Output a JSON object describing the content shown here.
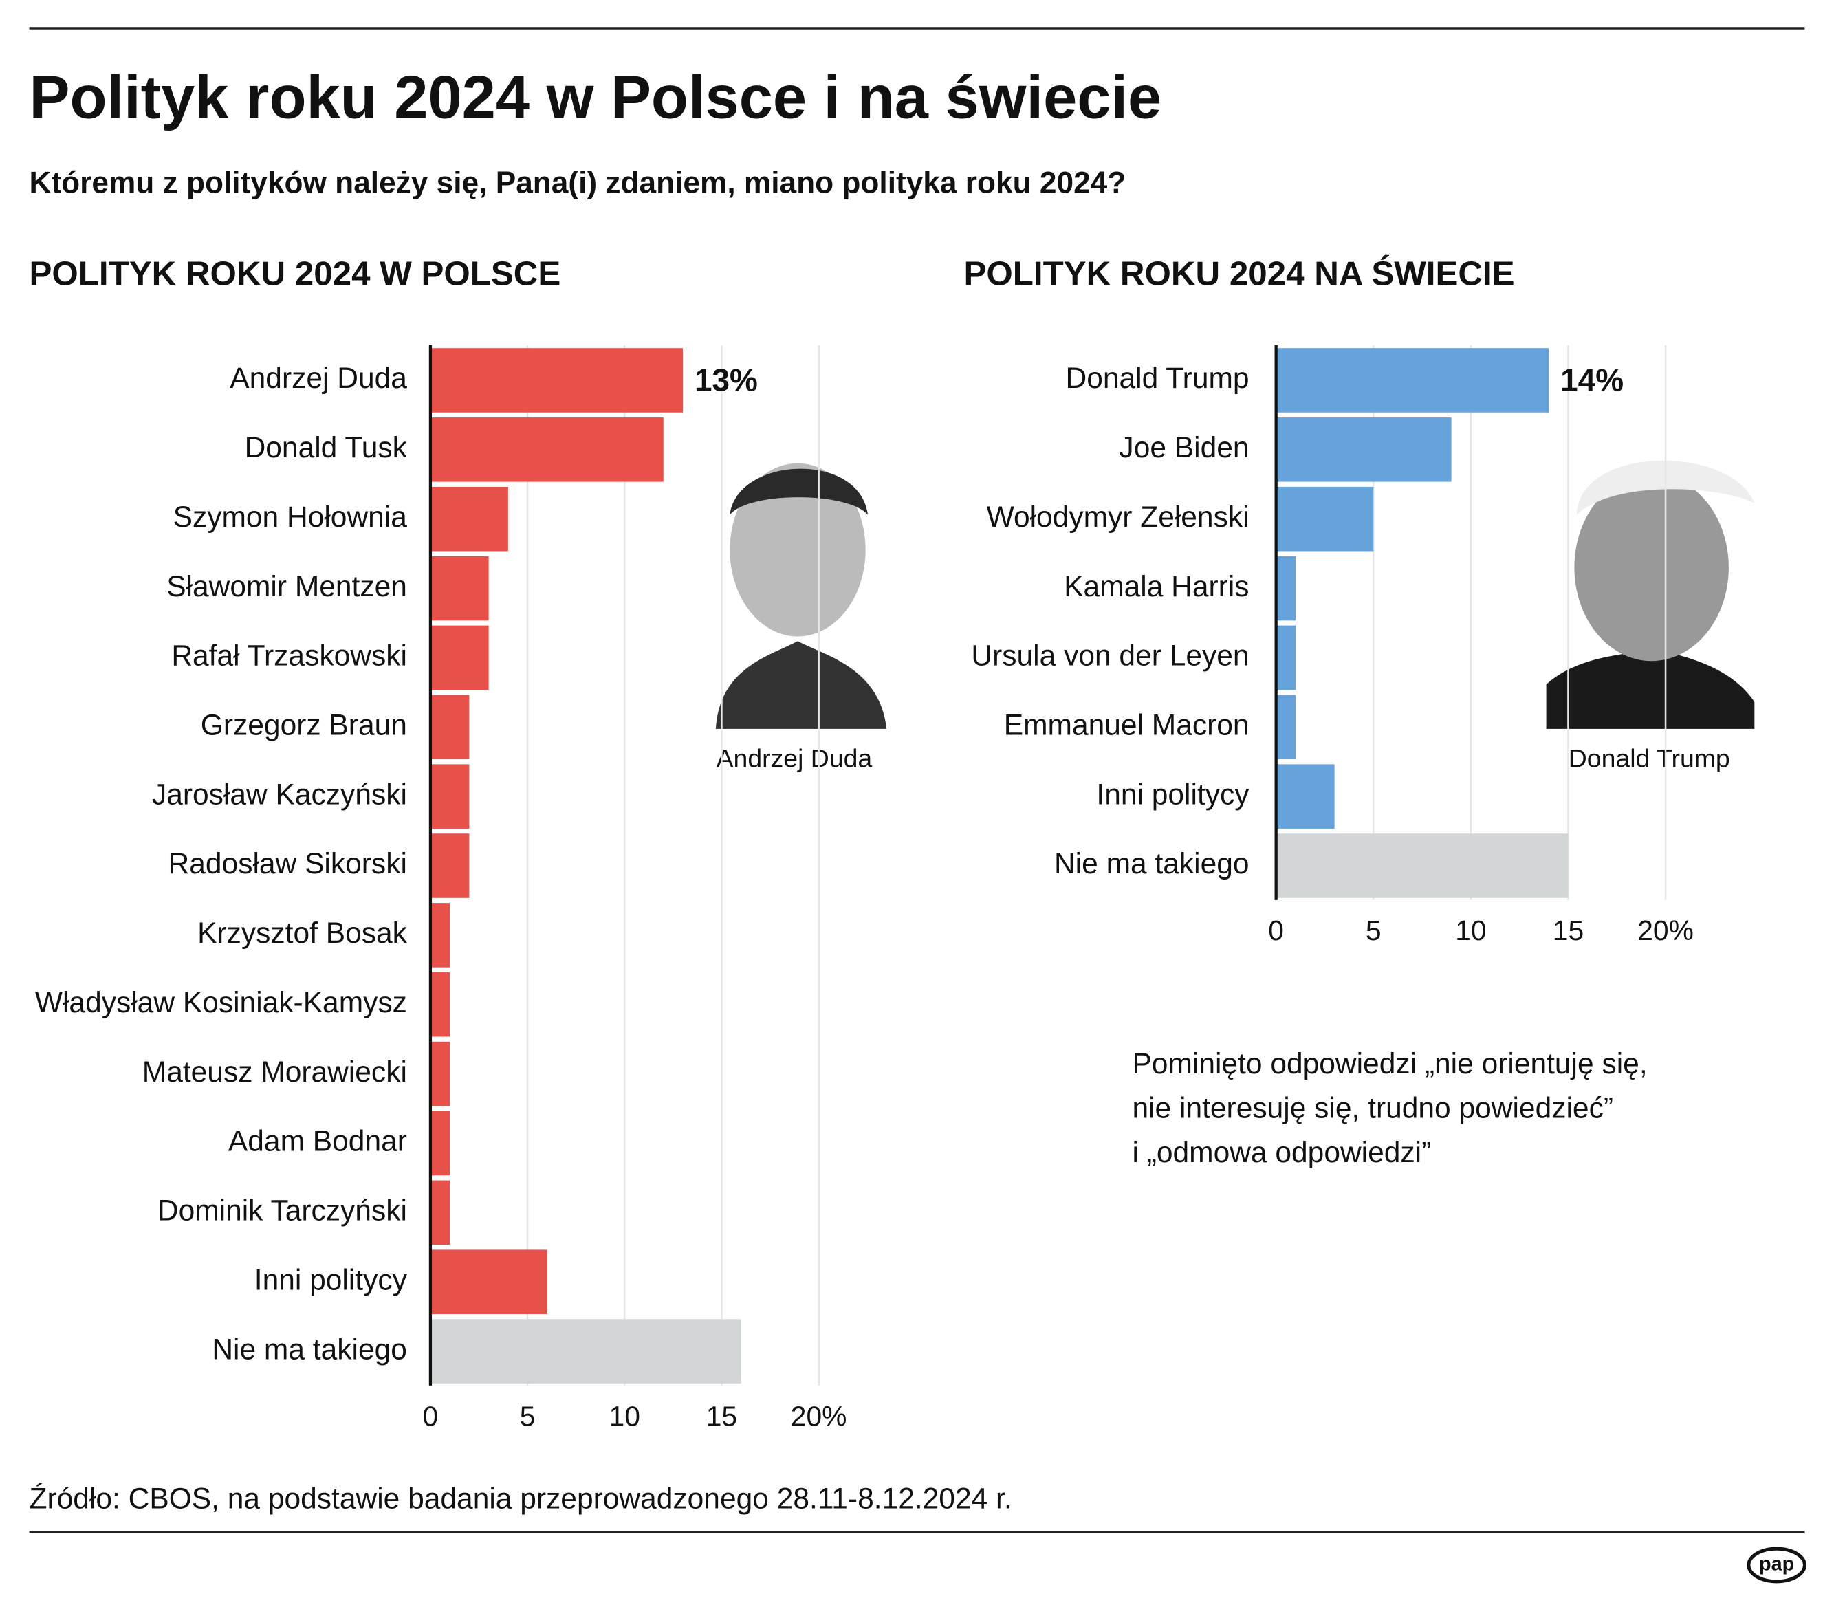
{
  "title": "Polityk roku 2024 w Polsce i na świecie",
  "subtitle": "Któremu z polityków należy się, Pana(i) zdaniem, miano polityka roku 2024?",
  "chart_data": [
    {
      "type": "bar",
      "orientation": "horizontal",
      "title": "POLITYK ROKU 2024 W POLSCE",
      "categories": [
        "Andrzej Duda",
        "Donald Tusk",
        "Szymon Hołownia",
        "Sławomir Mentzen",
        "Rafał Trzaskowski",
        "Grzegorz Braun",
        "Jarosław Kaczyński",
        "Radosław Sikorski",
        "Krzysztof Bosak",
        "Władysław Kosiniak-Kamysz",
        "Mateusz Morawiecki",
        "Adam Bodnar",
        "Dominik Tarczyński",
        "Inni politycy",
        "Nie ma takiego"
      ],
      "values": [
        13,
        12,
        4,
        3,
        3,
        2,
        2,
        2,
        1,
        1,
        1,
        1,
        1,
        6,
        16
      ],
      "value_labels": [
        "13%",
        null,
        null,
        null,
        null,
        null,
        null,
        null,
        null,
        null,
        null,
        null,
        null,
        null,
        null
      ],
      "colors": [
        "#e8514a",
        "#e8514a",
        "#e8514a",
        "#e8514a",
        "#e8514a",
        "#e8514a",
        "#e8514a",
        "#e8514a",
        "#e8514a",
        "#e8514a",
        "#e8514a",
        "#e8514a",
        "#e8514a",
        "#e8514a",
        "#d2d6d7"
      ],
      "xlim": [
        0,
        20
      ],
      "xticks": [
        0,
        5,
        10,
        15,
        {
          "value": 20,
          "label": "20%"
        }
      ],
      "grid": true,
      "photo_caption": "Andrzej Duda"
    },
    {
      "type": "bar",
      "orientation": "horizontal",
      "title": "POLITYK ROKU 2024 NA ŚWIECIE",
      "categories": [
        "Donald Trump",
        "Joe Biden",
        "Wołodymyr Zełenski",
        "Kamala Harris",
        "Ursula von der Leyen",
        "Emmanuel Macron",
        "Inni politycy",
        "Nie ma takiego"
      ],
      "values": [
        14,
        9,
        5,
        1,
        1,
        1,
        3,
        15
      ],
      "value_labels": [
        "14%",
        null,
        null,
        null,
        null,
        null,
        null,
        null
      ],
      "colors": [
        "#65a3da",
        "#65a3da",
        "#65a3da",
        "#65a3da",
        "#65a3da",
        "#65a3da",
        "#65a3da",
        "#d2d6d7"
      ],
      "xlim": [
        0,
        20
      ],
      "xticks": [
        0,
        5,
        10,
        15,
        {
          "value": 20,
          "label": "20%"
        }
      ],
      "grid": true,
      "photo_caption": "Donald Trump"
    }
  ],
  "note": [
    "Pominięto odpowiedzi „nie orientuję się,",
    "nie interesuję się, trudno powiedzieć”",
    "i „odmowa odpowiedzi”"
  ],
  "source": "Źródło: CBOS, na podstawie badania przeprowadzonego 28.11-8.12.2024 r.",
  "logo": "pap"
}
